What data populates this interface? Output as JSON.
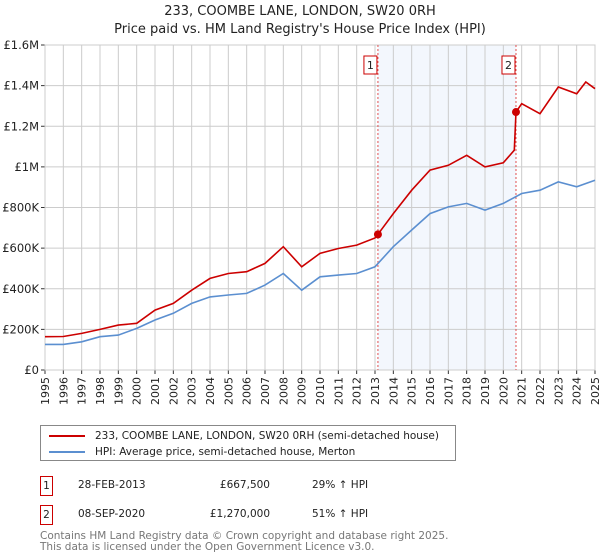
{
  "chart_data": {
    "type": "line",
    "title": "233, COOMBE LANE, LONDON, SW20 0RH",
    "subtitle": "Price paid vs. HM Land Registry's House Price Index (HPI)",
    "xlim": [
      1995,
      2025
    ],
    "ylim": [
      0,
      1600000
    ],
    "x_ticks": [
      "1995",
      "1996",
      "1997",
      "1998",
      "1999",
      "2000",
      "2001",
      "2002",
      "2003",
      "2004",
      "2005",
      "2006",
      "2007",
      "2008",
      "2009",
      "2010",
      "2011",
      "2012",
      "2013",
      "2014",
      "2015",
      "2016",
      "2017",
      "2018",
      "2019",
      "2020",
      "2021",
      "2022",
      "2023",
      "2024",
      "2025"
    ],
    "y_ticks": [
      {
        "v": 0,
        "label": "£0"
      },
      {
        "v": 200000,
        "label": "£200K"
      },
      {
        "v": 400000,
        "label": "£400K"
      },
      {
        "v": 600000,
        "label": "£600K"
      },
      {
        "v": 800000,
        "label": "£800K"
      },
      {
        "v": 1000000,
        "label": "£1M"
      },
      {
        "v": 1200000,
        "label": "£1.2M"
      },
      {
        "v": 1400000,
        "label": "£1.4M"
      },
      {
        "v": 1600000,
        "label": "£1.6M"
      }
    ],
    "grid": true,
    "series": [
      {
        "name": "233, COOMBE LANE, LONDON, SW20 0RH (semi-detached house)",
        "color": "#cc0000",
        "x": [
          1995,
          1996,
          1997,
          1998,
          1999,
          2000,
          2001,
          2002,
          2003,
          2004,
          2005,
          2006,
          2007,
          2008,
          2009,
          2010,
          2011,
          2012,
          2013,
          2013.16,
          2014,
          2015,
          2016,
          2017,
          2018,
          2019,
          2020,
          2020.6,
          2020.69,
          2021,
          2022,
          2023,
          2024,
          2024.5,
          2025
        ],
        "y": [
          164000,
          165000,
          180000,
          200000,
          221000,
          230000,
          295000,
          328000,
          393000,
          451000,
          475000,
          484000,
          525000,
          607000,
          508000,
          574000,
          598000,
          615000,
          650000,
          667500,
          770000,
          885000,
          984000,
          1008000,
          1057000,
          1000000,
          1020000,
          1082000,
          1270000,
          1311000,
          1262000,
          1393000,
          1360000,
          1418000,
          1385000
        ]
      },
      {
        "name": "HPI: Average price, semi-detached house, Merton",
        "color": "#5b8fd0",
        "x": [
          1995,
          1996,
          1997,
          1998,
          1999,
          2000,
          2001,
          2002,
          2003,
          2004,
          2005,
          2006,
          2007,
          2008,
          2009,
          2010,
          2011,
          2012,
          2013,
          2014,
          2015,
          2016,
          2017,
          2018,
          2019,
          2020,
          2021,
          2022,
          2023,
          2024,
          2025
        ],
        "y": [
          126000,
          126000,
          139000,
          164000,
          172000,
          205000,
          246000,
          279000,
          328000,
          360000,
          369000,
          377000,
          418000,
          475000,
          393000,
          459000,
          467000,
          475000,
          508000,
          607000,
          689000,
          770000,
          803000,
          820000,
          787000,
          820000,
          869000,
          885000,
          926000,
          902000,
          934000
        ]
      }
    ],
    "annotations": [
      {
        "label": "1",
        "x": 2013.16,
        "y": 667500
      },
      {
        "label": "2",
        "x": 2020.69,
        "y": 1270000
      }
    ],
    "legend": "below"
  },
  "legend": {
    "red": "233, COOMBE LANE, LONDON, SW20 0RH (semi-detached house)",
    "blue": "HPI: Average price, semi-detached house, Merton"
  },
  "sales": [
    {
      "num": "1",
      "date": "28-FEB-2013",
      "price": "£667,500",
      "hpi": "29% ↑ HPI"
    },
    {
      "num": "2",
      "date": "08-SEP-2020",
      "price": "£1,270,000",
      "hpi": "51% ↑ HPI"
    }
  ],
  "footer": {
    "line1": "Contains HM Land Registry data © Crown copyright and database right 2025.",
    "line2": "This data is licensed under the Open Government Licence v3.0."
  }
}
